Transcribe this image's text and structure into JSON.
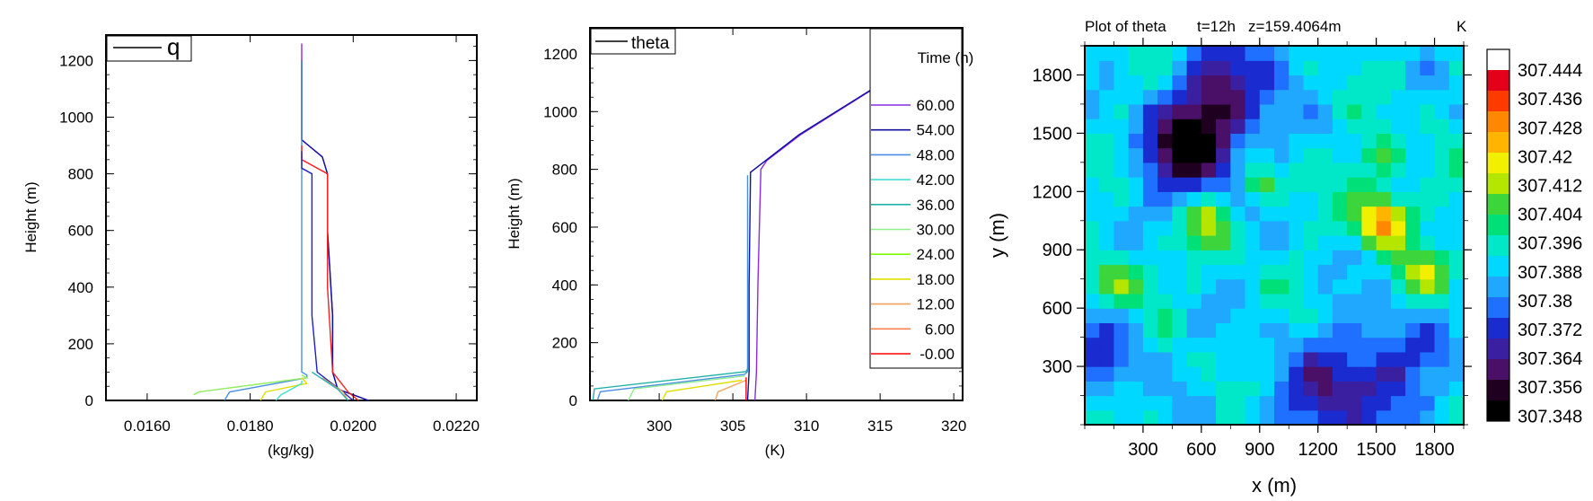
{
  "chart_data": [
    {
      "type": "line",
      "xlabel": "(kg/kg)",
      "ylabel": "Height (m)",
      "xlim": [
        0.0152,
        0.0224
      ],
      "ylim": [
        0,
        1290
      ],
      "xticks": [
        "0.0160",
        "0.0180",
        "0.0200",
        "0.0220"
      ],
      "xtick_values": [
        0.016,
        0.018,
        0.02,
        0.022
      ],
      "yticks": [
        "0",
        "200",
        "400",
        "600",
        "800",
        "1000",
        "1200"
      ],
      "yticks_values": [
        0,
        200,
        400,
        600,
        800,
        1000,
        1200
      ],
      "legend": {
        "label": "q",
        "placement": "top-left"
      },
      "series": [
        {
          "color": "#8a2be2",
          "x": [
            0.019,
            0.019,
            0.0191,
            0.0194,
            0.0195,
            0.0195,
            0.0196,
            0.0196,
            0.0197,
            0.0203
          ],
          "y": [
            1260,
            920,
            905,
            860,
            800,
            600,
            300,
            100,
            40,
            0
          ]
        },
        {
          "color": "#1010a0",
          "x": [
            0.019,
            0.019,
            0.0191,
            0.0194,
            0.0195,
            0.0195,
            0.0196,
            0.0196,
            0.0197,
            0.0203
          ],
          "y": [
            1200,
            920,
            905,
            860,
            800,
            600,
            300,
            100,
            40,
            0
          ]
        },
        {
          "color": "#4a90e2",
          "x": [
            0.019,
            0.019,
            0.019,
            0.0191,
            0.0191,
            0.0176,
            0.0175
          ],
          "y": [
            1200,
            800,
            100,
            90,
            80,
            30,
            0
          ]
        },
        {
          "color": "#ff2020",
          "x": [
            0.019,
            0.019,
            0.0195,
            0.0195,
            0.0196,
            0.0199,
            0.0201
          ],
          "y": [
            900,
            850,
            800,
            400,
            100,
            30,
            0
          ]
        },
        {
          "color": "#2020c0",
          "x": [
            0.019,
            0.019,
            0.0192,
            0.0192,
            0.0193,
            0.0198,
            0.02
          ],
          "y": [
            880,
            820,
            800,
            300,
            100,
            30,
            0
          ]
        },
        {
          "color": "#90ee60",
          "x": [
            0.019,
            0.0191,
            0.017,
            0.0169
          ],
          "y": [
            90,
            80,
            30,
            20
          ]
        },
        {
          "color": "#e0e000",
          "x": [
            0.019,
            0.0191,
            0.0183,
            0.0182
          ],
          "y": [
            80,
            60,
            30,
            0
          ]
        },
        {
          "color": "#40e0d0",
          "x": [
            0.019,
            0.019,
            0.0186,
            0.0185
          ],
          "y": [
            70,
            60,
            20,
            0
          ]
        },
        {
          "color": "#f4a460",
          "x": [
            0.0194,
            0.0198,
            0.0199
          ],
          "y": [
            80,
            30,
            0
          ]
        },
        {
          "color": "#20b2aa",
          "x": [
            0.0192,
            0.0197,
            0.0199
          ],
          "y": [
            100,
            40,
            0
          ]
        }
      ]
    },
    {
      "type": "line",
      "xlabel": "(K)",
      "ylabel": "Height (m)",
      "xlim": [
        295.3,
        320.6
      ],
      "ylim": [
        0,
        1290
      ],
      "xticks": [
        "300",
        "305",
        "310",
        "315",
        "320"
      ],
      "xtick_values": [
        300,
        305,
        310,
        315,
        320
      ],
      "yticks": [
        "0",
        "200",
        "400",
        "600",
        "800",
        "1000",
        "1200"
      ],
      "yticks_values": [
        0,
        200,
        400,
        600,
        800,
        1000,
        1200
      ],
      "legend": {
        "label": "theta",
        "placement": "top-left"
      },
      "time_legend": {
        "title": "Time (h)",
        "entries": [
          {
            "label": "60.00",
            "color": "#8a2be2"
          },
          {
            "label": "54.00",
            "color": "#1010a0"
          },
          {
            "label": "48.00",
            "color": "#4a90e2"
          },
          {
            "label": "42.00",
            "color": "#40e0d0"
          },
          {
            "label": "36.00",
            "color": "#20b2aa"
          },
          {
            "label": "30.00",
            "color": "#90ee90"
          },
          {
            "label": "24.00",
            "color": "#7cfc00"
          },
          {
            "label": "18.00",
            "color": "#e0e000"
          },
          {
            "label": "12.00",
            "color": "#f4a460"
          },
          {
            "label": "6.00",
            "color": "#ff7f50"
          },
          {
            "label": "-0.00",
            "color": "#ff0000"
          }
        ]
      },
      "series": [
        {
          "color": "#8a2be2",
          "x": [
            306.5,
            306.6,
            306.7,
            306.9,
            307.3,
            309.6,
            320.5
          ],
          "y": [
            0,
            100,
            400,
            800,
            830,
            920,
            1270
          ]
        },
        {
          "color": "#1010a0",
          "x": [
            306.0,
            306.1,
            306.1,
            306.2,
            309.5,
            320.5
          ],
          "y": [
            0,
            100,
            400,
            790,
            920,
            1270
          ]
        },
        {
          "color": "#4a90e2",
          "x": [
            306.0,
            306.0,
            305.8,
            296.0,
            295.8
          ],
          "y": [
            780,
            100,
            90,
            30,
            0
          ]
        },
        {
          "color": "#20b2aa",
          "x": [
            306.0,
            305.9,
            295.6,
            295.5
          ],
          "y": [
            110,
            100,
            40,
            0
          ]
        },
        {
          "color": "#90ee90",
          "x": [
            305.8,
            298.3,
            297.9
          ],
          "y": [
            85,
            40,
            0
          ]
        },
        {
          "color": "#e0e000",
          "x": [
            305.6,
            300.5,
            300.2
          ],
          "y": [
            70,
            30,
            0
          ]
        },
        {
          "color": "#f4a460",
          "x": [
            305.9,
            304.0,
            303.8
          ],
          "y": [
            70,
            30,
            0
          ]
        },
        {
          "color": "#ff0000",
          "x": [
            305.9,
            305.9
          ],
          "y": [
            80,
            0
          ]
        }
      ]
    },
    {
      "type": "heatmap",
      "title": "Plot of theta",
      "subtitle_time": "t=12h",
      "subtitle_z": "z=159.4064m",
      "units": "K",
      "xlabel": "x (m)",
      "ylabel": "y (m)",
      "xlim": [
        0,
        1950
      ],
      "ylim": [
        0,
        1950
      ],
      "xticks": [
        "300",
        "600",
        "900",
        "1200",
        "1500",
        "1800"
      ],
      "xtick_values": [
        300,
        600,
        900,
        1200,
        1500,
        1800
      ],
      "yticks": [
        "300",
        "600",
        "900",
        "1200",
        "1500",
        "1800"
      ],
      "ytick_values": [
        300,
        600,
        900,
        1200,
        1500,
        1800
      ],
      "grid": [
        26,
        26
      ],
      "colorbar_labels": [
        "307.444",
        "307.436",
        "307.428",
        "307.42",
        "307.412",
        "307.404",
        "307.396",
        "307.388",
        "307.38",
        "307.372",
        "307.364",
        "307.356",
        "307.348"
      ],
      "colorbar_colors": [
        "#ffffff",
        "#e4001a",
        "#ff3a00",
        "#ff8800",
        "#ffb400",
        "#f2f000",
        "#b4e600",
        "#3cd53c",
        "#00e078",
        "#00e8c8",
        "#00d8ff",
        "#20a8ff",
        "#2070ff",
        "#1a2bd0",
        "#3a20a0",
        "#4a1068",
        "#200020",
        "#000000"
      ]
    }
  ]
}
